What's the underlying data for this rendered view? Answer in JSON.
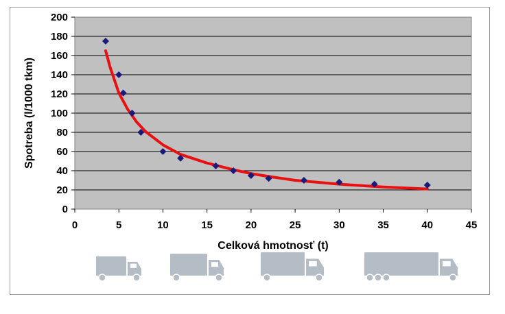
{
  "chart_data": {
    "type": "scatter",
    "title": "",
    "xlabel": "Celková hmotnosť (t)",
    "ylabel": "Spotreba (l/1000 tkm)",
    "xlim": [
      0,
      45
    ],
    "ylim": [
      0,
      200
    ],
    "x_ticks": [
      "0",
      "5",
      "10",
      "15",
      "20",
      "25",
      "30",
      "35",
      "40",
      "45"
    ],
    "y_ticks": [
      "0",
      "20",
      "40",
      "60",
      "80",
      "100",
      "120",
      "140",
      "160",
      "180",
      "200"
    ],
    "grid": "horizontal",
    "legend": "none",
    "series": [
      {
        "kind": "scatter",
        "marker": "diamond",
        "color": "#1a1a7a",
        "x": [
          3.5,
          5,
          5.5,
          6.5,
          7.5,
          10,
          12,
          16,
          18,
          20,
          22,
          26,
          30,
          34,
          40
        ],
        "y": [
          175,
          140,
          121,
          100,
          80,
          60,
          53,
          45,
          40,
          35,
          32,
          30,
          28,
          26,
          25
        ]
      },
      {
        "kind": "trendline",
        "color": "#e81010",
        "x": [
          3.5,
          4,
          5,
          6,
          7,
          8,
          10,
          12,
          15,
          18,
          20,
          22,
          25,
          30,
          35,
          40
        ],
        "y": [
          165,
          148,
          121,
          104,
          91,
          81,
          67,
          57,
          48,
          41,
          37,
          34,
          30,
          26,
          23,
          21
        ]
      }
    ],
    "plot_background": "#c0c0c0",
    "truck_icons": [
      "small-truck-icon",
      "medium-truck-icon",
      "large-truck-icon",
      "semi-trailer-truck-icon"
    ],
    "truck_icon_color": "#b4bcc6"
  }
}
